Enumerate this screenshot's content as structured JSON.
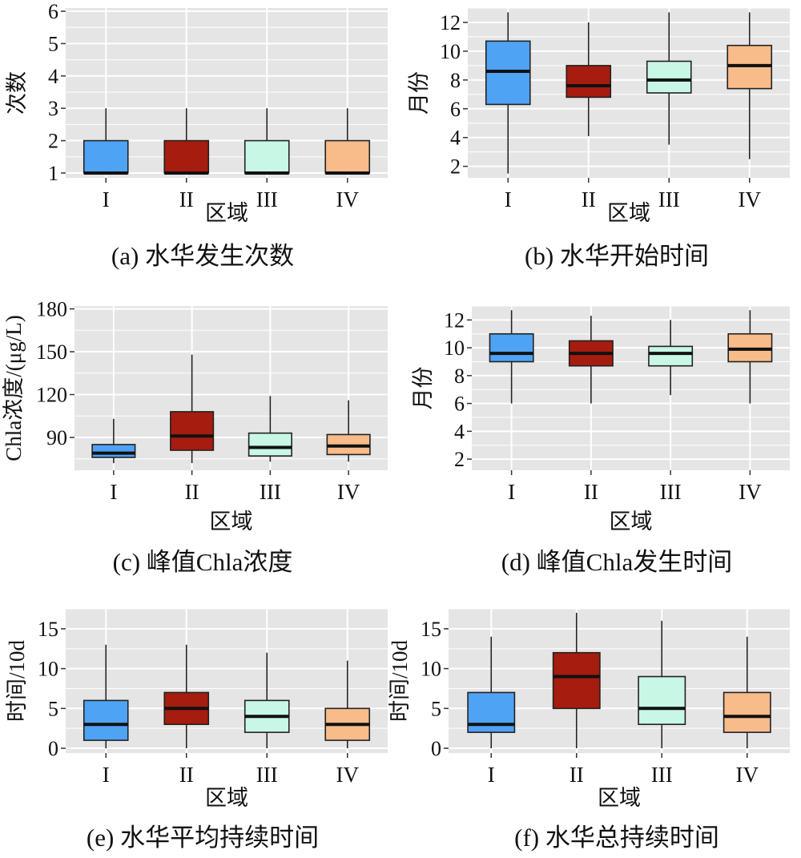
{
  "colors": {
    "panel_bg": "#e5e5e5",
    "grid": "#ffffff",
    "I": "#4fa3f5",
    "II": "#a61c0e",
    "III": "#c8f7e6",
    "IV": "#f8bb8a",
    "outline": "#222222"
  },
  "chart_data": [
    {
      "type": "box",
      "caption": "(a) 水华发生次数",
      "xlabel": "区域",
      "ylabel": "次数",
      "ylim": [
        0.85,
        6.1
      ],
      "yticks": [
        1,
        2,
        3,
        4,
        5,
        6
      ],
      "ytick_labels": [
        "1",
        "2",
        "3",
        "4",
        "5",
        "6"
      ],
      "categories": [
        "I",
        "II",
        "III",
        "IV"
      ],
      "boxes": [
        {
          "min": 1,
          "q1": 1,
          "median": 1,
          "q3": 2,
          "max": 3
        },
        {
          "min": 1,
          "q1": 1,
          "median": 1,
          "q3": 2,
          "max": 3
        },
        {
          "min": 1,
          "q1": 1,
          "median": 1,
          "q3": 2,
          "max": 3
        },
        {
          "min": 1,
          "q1": 1,
          "median": 1,
          "q3": 2,
          "max": 3
        }
      ]
    },
    {
      "type": "box",
      "caption": "(b) 水华开始时间",
      "xlabel": "区域",
      "ylabel": "月份",
      "ylim": [
        1.2,
        13.0
      ],
      "yticks": [
        2,
        4,
        6,
        8,
        10,
        12
      ],
      "ytick_labels": [
        "2",
        "4",
        "6",
        "8",
        "10",
        "12"
      ],
      "categories": [
        "I",
        "II",
        "III",
        "IV"
      ],
      "boxes": [
        {
          "min": 1.5,
          "q1": 6.3,
          "median": 8.6,
          "q3": 10.7,
          "max": 12.7
        },
        {
          "min": 4.1,
          "q1": 6.8,
          "median": 7.6,
          "q3": 9.0,
          "max": 12.0
        },
        {
          "min": 3.5,
          "q1": 7.1,
          "median": 8.0,
          "q3": 9.3,
          "max": 12.7
        },
        {
          "min": 2.5,
          "q1": 7.4,
          "median": 9.0,
          "q3": 10.4,
          "max": 12.7
        }
      ]
    },
    {
      "type": "box",
      "caption": "(c) 峰值Chla浓度",
      "xlabel": "区域",
      "ylabel": "Chla浓度/(μg/L)",
      "ylim": [
        67,
        182
      ],
      "yticks": [
        90,
        120,
        150,
        180
      ],
      "ytick_labels": [
        "90",
        "120",
        "150",
        "180"
      ],
      "categories": [
        "I",
        "II",
        "III",
        "IV"
      ],
      "boxes": [
        {
          "min": 72,
          "q1": 76,
          "median": 79,
          "q3": 85,
          "max": 103
        },
        {
          "min": 72,
          "q1": 81,
          "median": 91,
          "q3": 108,
          "max": 148
        },
        {
          "min": 73,
          "q1": 77,
          "median": 83,
          "q3": 93,
          "max": 119
        },
        {
          "min": 73,
          "q1": 78,
          "median": 84,
          "q3": 92,
          "max": 116
        }
      ]
    },
    {
      "type": "box",
      "caption": "(d) 峰值Chla发生时间",
      "xlabel": "区域",
      "ylabel": "月份",
      "ylim": [
        1.2,
        13.0
      ],
      "yticks": [
        2,
        4,
        6,
        8,
        10,
        12
      ],
      "ytick_labels": [
        "2",
        "4",
        "6",
        "8",
        "10",
        "12"
      ],
      "categories": [
        "I",
        "II",
        "III",
        "IV"
      ],
      "boxes": [
        {
          "min": 6,
          "q1": 9.0,
          "median": 9.6,
          "q3": 11.0,
          "max": 12.7
        },
        {
          "min": 6,
          "q1": 8.7,
          "median": 9.6,
          "q3": 10.5,
          "max": 12.3
        },
        {
          "min": 6.6,
          "q1": 8.7,
          "median": 9.6,
          "q3": 10.1,
          "max": 12.0
        },
        {
          "min": 6,
          "q1": 9.0,
          "median": 9.9,
          "q3": 11.0,
          "max": 12.7
        }
      ]
    },
    {
      "type": "box",
      "caption": "(e) 水华平均持续时间",
      "xlabel": "区域",
      "ylabel": "时间/10d",
      "ylim": [
        -0.6,
        17.5
      ],
      "yticks": [
        0,
        5,
        10,
        15
      ],
      "ytick_labels": [
        "0",
        "5",
        "10",
        "15"
      ],
      "categories": [
        "I",
        "II",
        "III",
        "IV"
      ],
      "boxes": [
        {
          "min": 0,
          "q1": 1,
          "median": 3,
          "q3": 6,
          "max": 13
        },
        {
          "min": 0,
          "q1": 3,
          "median": 5,
          "q3": 7,
          "max": 13
        },
        {
          "min": 0,
          "q1": 2,
          "median": 4,
          "q3": 6,
          "max": 12
        },
        {
          "min": 0,
          "q1": 1,
          "median": 3,
          "q3": 5,
          "max": 11
        }
      ]
    },
    {
      "type": "box",
      "caption": "(f) 水华总持续时间",
      "xlabel": "区域",
      "ylabel": "时间/10d",
      "ylim": [
        -0.6,
        17.5
      ],
      "yticks": [
        0,
        5,
        10,
        15
      ],
      "ytick_labels": [
        "0",
        "5",
        "10",
        "15"
      ],
      "categories": [
        "I",
        "II",
        "III",
        "IV"
      ],
      "boxes": [
        {
          "min": 0,
          "q1": 2,
          "median": 3,
          "q3": 7,
          "max": 14
        },
        {
          "min": 0,
          "q1": 5,
          "median": 9,
          "q3": 12,
          "max": 17
        },
        {
          "min": 0,
          "q1": 3,
          "median": 5,
          "q3": 9,
          "max": 16
        },
        {
          "min": 0,
          "q1": 2,
          "median": 4,
          "q3": 7,
          "max": 14
        }
      ]
    }
  ]
}
